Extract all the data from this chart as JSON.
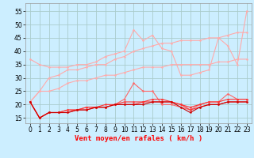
{
  "x": [
    0,
    1,
    2,
    3,
    4,
    5,
    6,
    7,
    8,
    9,
    10,
    11,
    12,
    13,
    14,
    15,
    16,
    17,
    18,
    19,
    20,
    21,
    22,
    23
  ],
  "series": [
    {
      "color": "#ffaaaa",
      "linewidth": 0.8,
      "markersize": 1.8,
      "y": [
        37,
        35,
        34,
        34,
        34,
        35,
        35,
        36,
        38,
        39,
        40,
        48,
        44,
        46,
        41,
        40,
        31,
        31,
        32,
        33,
        45,
        42,
        35,
        55
      ]
    },
    {
      "color": "#ffaaaa",
      "linewidth": 0.8,
      "markersize": 1.8,
      "y": [
        21,
        25,
        30,
        31,
        33,
        33,
        34,
        35,
        35,
        37,
        38,
        40,
        41,
        42,
        43,
        43,
        44,
        44,
        44,
        45,
        45,
        46,
        47,
        47
      ]
    },
    {
      "color": "#ffaaaa",
      "linewidth": 0.8,
      "markersize": 1.8,
      "y": [
        21,
        25,
        25,
        26,
        28,
        29,
        29,
        30,
        31,
        31,
        32,
        33,
        34,
        34,
        34,
        35,
        35,
        35,
        35,
        35,
        36,
        36,
        37,
        37
      ]
    },
    {
      "color": "#ff6666",
      "linewidth": 0.8,
      "markersize": 1.8,
      "y": [
        21,
        15,
        17,
        17,
        18,
        18,
        19,
        19,
        19,
        20,
        22,
        28,
        25,
        25,
        20,
        20,
        19,
        18,
        20,
        21,
        21,
        24,
        22,
        22
      ]
    },
    {
      "color": "#ff3333",
      "linewidth": 0.8,
      "markersize": 1.8,
      "y": [
        21,
        15,
        17,
        17,
        18,
        18,
        19,
        19,
        20,
        20,
        21,
        21,
        21,
        22,
        22,
        21,
        20,
        19,
        20,
        21,
        21,
        22,
        22,
        22
      ]
    },
    {
      "color": "#ff3333",
      "linewidth": 0.8,
      "markersize": 1.8,
      "y": [
        21,
        15,
        17,
        17,
        17,
        18,
        18,
        19,
        19,
        20,
        20,
        20,
        21,
        21,
        21,
        21,
        20,
        18,
        19,
        20,
        20,
        21,
        21,
        21
      ]
    },
    {
      "color": "#cc0000",
      "linewidth": 0.8,
      "markersize": 1.8,
      "y": [
        21,
        15,
        17,
        17,
        17,
        18,
        18,
        19,
        19,
        20,
        20,
        20,
        20,
        21,
        21,
        21,
        19,
        17,
        19,
        20,
        20,
        21,
        21,
        21
      ]
    }
  ],
  "xlabel": "Vent moyen/en rafales ( km/h )",
  "background_color": "#cceeff",
  "grid_color": "#aacccc",
  "xlim": [
    -0.5,
    23.5
  ],
  "ylim": [
    13,
    58
  ],
  "yticks": [
    15,
    20,
    25,
    30,
    35,
    40,
    45,
    50,
    55
  ],
  "xticks": [
    0,
    1,
    2,
    3,
    4,
    5,
    6,
    7,
    8,
    9,
    10,
    11,
    12,
    13,
    14,
    15,
    16,
    17,
    18,
    19,
    20,
    21,
    22,
    23
  ],
  "tick_fontsize": 5.5,
  "xlabel_fontsize": 6.5,
  "arrow_color": "#ff8888"
}
